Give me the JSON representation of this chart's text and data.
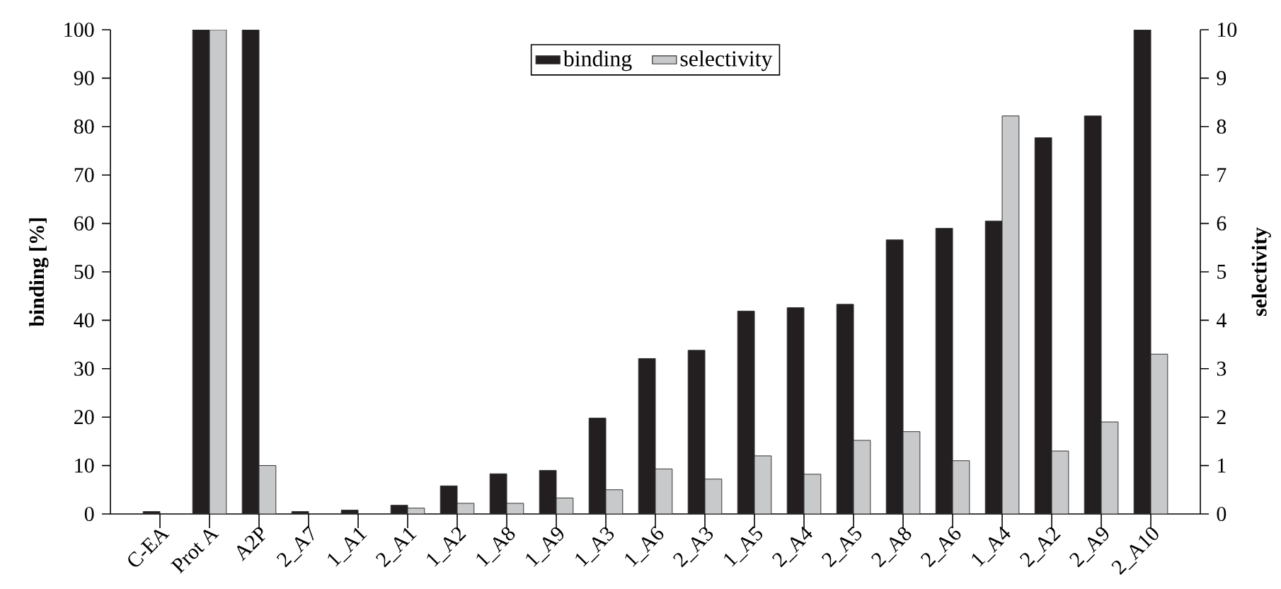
{
  "chart_data": {
    "type": "bar",
    "categories": [
      "C-EA",
      "Prot A",
      "A2P",
      "2_A7",
      "1_A1",
      "2_A1",
      "1_A2",
      "1_A8",
      "1_A9",
      "1_A3",
      "1_A6",
      "2_A3",
      "1_A5",
      "2_A4",
      "2_A5",
      "2_A8",
      "2_A6",
      "1_A4",
      "2_A2",
      "2_A9",
      "2_A10"
    ],
    "series": [
      {
        "name": "binding",
        "color": "#231f20",
        "values": [
          0.5,
          100,
          100,
          0.5,
          0.8,
          1.8,
          5.8,
          8.3,
          9,
          19.8,
          32.1,
          33.8,
          41.9,
          42.6,
          43.3,
          56.6,
          59,
          60.5,
          77.7,
          82.2,
          100
        ]
      },
      {
        "name": "selectivity",
        "color": "#c8c9ca",
        "axis": "y2",
        "values": [
          null,
          10,
          1.0,
          null,
          null,
          0.12,
          0.22,
          0.22,
          0.33,
          0.5,
          0.93,
          0.72,
          1.2,
          0.82,
          1.52,
          1.7,
          1.1,
          8.22,
          1.3,
          1.9,
          3.3
        ]
      }
    ],
    "ylabel": "binding [%]",
    "y2label": "selectivity",
    "ylim": [
      0,
      100
    ],
    "yticks": [
      0,
      10,
      20,
      30,
      40,
      50,
      60,
      70,
      80,
      90,
      100
    ],
    "y2lim": [
      0,
      10
    ],
    "y2ticks": [
      0,
      1,
      2,
      3,
      4,
      5,
      6,
      7,
      8,
      9,
      10
    ],
    "legend": "top"
  }
}
